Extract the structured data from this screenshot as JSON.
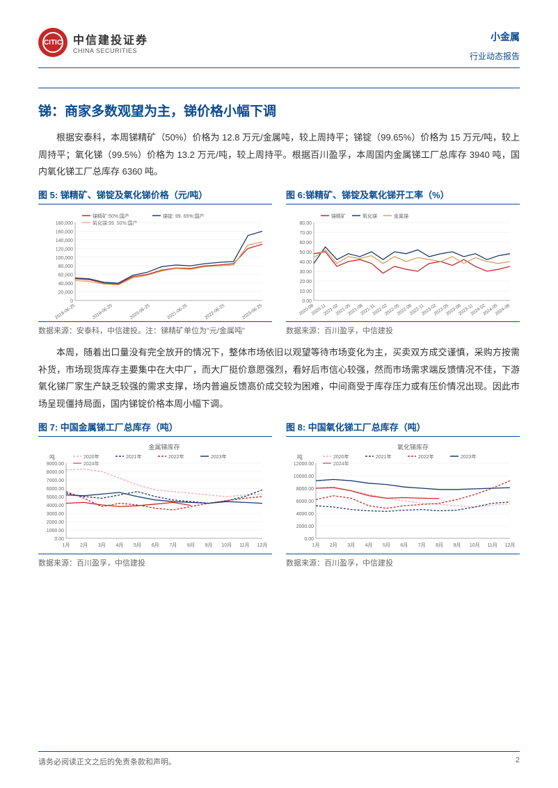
{
  "header": {
    "logo_inner": "CITIC",
    "logo_cn": "中信建投证券",
    "logo_en": "CHINA SECURITIES",
    "category": "小金属",
    "report_type": "行业动态报告"
  },
  "title": "锑：商家多数观望为主，锑价格小幅下调",
  "para1": "根据安泰科，本周锑精矿（50%）价格为 12.8 万元/金属吨，较上周持平；锑锭（99.65%）价格为 15 万元/吨，较上周持平；氧化锑（99.5%）价格为 13.2 万元/吨，较上周持平。根据百川盈孚，本周国内金属锑工厂总库存 3940 吨，国内氧化锑工厂总库存 6360 吨。",
  "para2": "本周，随着出口量没有完全放开的情况下，整体市场依旧以观望等待市场变化为主，买卖双方成交谨慎，采购方按需补货，市场现货库存主要集中在大中厂，而大厂挺价意愿强烈，看好后市信心较强，然而市场需求端反馈情况不佳，下游氧化锑厂家生产缺乏较强的需求支撑，场内普遍反馈高价成交较为困难，中间商受于库存压力或有压价情况出现。因此市场呈现僵持局面，国内锑锭价格本周小幅下调。",
  "chart5": {
    "title": "图 5: 锑精矿、锑锭及氧化锑价格（元/吨）",
    "source": "数据来源：安泰科，中信建投。注：锑精矿单位为\"元/金属吨\"",
    "type": "line",
    "series": [
      {
        "name": "锑精矿:50%:国产",
        "color": "#c62828"
      },
      {
        "name": "锑锭: 99. 65%:国产",
        "color": "#1b3a6b"
      },
      {
        "name": "氧化锑:99. 50%:国产",
        "color": "#d9a05b"
      }
    ],
    "x_labels": [
      "2018-06-25",
      "2019-06-25",
      "2020-06-25",
      "2021-06-25",
      "2022-06-25",
      "2023-06-25"
    ],
    "y_ticks": [
      0,
      20000,
      40000,
      60000,
      80000,
      100000,
      120000,
      140000,
      160000,
      180000
    ],
    "y_tick_labels": [
      "0",
      "20,000",
      "40,000",
      "60,000",
      "80,000",
      "100,000",
      "120,000",
      "140,000",
      "160,000",
      "180,000"
    ],
    "ylim": [
      0,
      180000
    ],
    "data": {
      "ore": [
        50000,
        48000,
        40000,
        38000,
        55000,
        60000,
        70000,
        75000,
        74000,
        80000,
        82000,
        85000,
        120000,
        130000
      ],
      "ingot": [
        52000,
        50000,
        42000,
        40000,
        58000,
        65000,
        78000,
        82000,
        80000,
        85000,
        88000,
        90000,
        150000,
        160000
      ],
      "oxide": [
        46000,
        44000,
        38000,
        36000,
        52000,
        58000,
        68000,
        74000,
        72000,
        78000,
        80000,
        82000,
        128000,
        135000
      ]
    }
  },
  "chart6": {
    "title": "图 6:锑精矿、锑锭及氧化锑开工率（%）",
    "source": "数据来源：百川盈孚，中信建投",
    "type": "line",
    "series": [
      {
        "name": "锑精矿",
        "color": "#c62828"
      },
      {
        "name": "氧化锑",
        "color": "#1b3a6b"
      },
      {
        "name": "金属锑",
        "color": "#d9a05b"
      }
    ],
    "x_labels": [
      "2020-08",
      "2020-11",
      "2021-02",
      "2021-05",
      "2021-08",
      "2021-11",
      "2022-02",
      "2022-05",
      "2022-08",
      "2022-11",
      "2023-02",
      "2023-05",
      "2023-08",
      "2023-11",
      "2024-02",
      "2024-05",
      "2024-08"
    ],
    "y_ticks": [
      0,
      10,
      20,
      30,
      40,
      50,
      60,
      70,
      80
    ],
    "ylim": [
      0,
      80
    ],
    "data": {
      "ore": [
        48,
        50,
        35,
        40,
        42,
        38,
        28,
        35,
        32,
        30,
        38,
        40,
        36,
        42,
        35,
        30,
        32,
        35
      ],
      "oxide": [
        38,
        55,
        42,
        48,
        45,
        50,
        42,
        50,
        48,
        52,
        45,
        48,
        50,
        45,
        48,
        42,
        46,
        48
      ],
      "metal": [
        44,
        52,
        38,
        45,
        43,
        46,
        38,
        45,
        40,
        44,
        42,
        40,
        45,
        38,
        44,
        40,
        38,
        40
      ]
    }
  },
  "chart7": {
    "title": "图 7: 中国金属锑工厂总库存（吨）",
    "subtitle": "金属锑库存",
    "source": "数据来源：百川盈孚，中信建投",
    "type": "line",
    "y_axis_label": "吨",
    "series": [
      {
        "name": "2020年",
        "color": "#f4a6b0",
        "dash": true
      },
      {
        "name": "2021年",
        "color": "#1b3a6b",
        "dash": true
      },
      {
        "name": "2022年",
        "color": "#c62828",
        "dash": true
      },
      {
        "name": "2023年",
        "color": "#1b3a6b",
        "dash": false
      },
      {
        "name": "2024年",
        "color": "#c62828",
        "dash": false
      }
    ],
    "x_labels": [
      "1月",
      "2月",
      "3月",
      "4月",
      "5月",
      "6月",
      "7月",
      "8月",
      "9月",
      "10月",
      "11月",
      "12月"
    ],
    "y_ticks": [
      0,
      1000,
      2000,
      3000,
      4000,
      5000,
      6000,
      7000,
      8000,
      9000
    ],
    "ylim": [
      0,
      9000
    ],
    "data": {
      "2020": [
        8200,
        8300,
        8000,
        7200,
        6400,
        5800,
        5600,
        5400,
        5200,
        5000,
        5200,
        5300
      ],
      "2021": [
        5400,
        5000,
        4800,
        5200,
        5600,
        5000,
        4600,
        4400,
        4200,
        4500,
        5000,
        5800
      ],
      "2022": [
        5600,
        4800,
        3800,
        4200,
        4000,
        3600,
        3400,
        3800,
        4200,
        4500,
        4800,
        5000
      ],
      "2023": [
        5200,
        5100,
        5300,
        5500,
        5000,
        4600,
        4400,
        4300,
        4200,
        4400,
        4300,
        4200
      ],
      "2024": [
        4200,
        4300,
        4000,
        3800,
        3900,
        4100,
        4300,
        3940,
        0,
        0,
        0,
        0
      ]
    }
  },
  "chart8": {
    "title": "图 8: 中国氧化锑工厂总库存（吨）",
    "subtitle": "氧化锑库存",
    "source": "数据来源：百川盈孚，中信建投",
    "type": "line",
    "y_axis_label": "吨",
    "series": [
      {
        "name": "2020年",
        "color": "#f4a6b0",
        "dash": true
      },
      {
        "name": "2021年",
        "color": "#1b3a6b",
        "dash": true
      },
      {
        "name": "2022年",
        "color": "#c62828",
        "dash": true
      },
      {
        "name": "2023年",
        "color": "#1b3a6b",
        "dash": false
      },
      {
        "name": "2024年",
        "color": "#c62828",
        "dash": false
      }
    ],
    "x_labels": [
      "1月",
      "2月",
      "3月",
      "4月",
      "5月",
      "6月",
      "7月",
      "8月",
      "9月",
      "10月",
      "11月",
      "12月"
    ],
    "y_ticks": [
      0,
      2000,
      4000,
      6000,
      8000,
      10000,
      12000
    ],
    "ylim": [
      0,
      12000
    ],
    "data": {
      "2020": [
        8000,
        8200,
        7600,
        7000,
        6400,
        6000,
        5600,
        5400,
        5200,
        5000,
        5300,
        5500
      ],
      "2021": [
        5200,
        5000,
        4600,
        4400,
        4300,
        4500,
        4600,
        4400,
        4500,
        5000,
        5600,
        5800
      ],
      "2022": [
        6200,
        6800,
        6400,
        5200,
        4800,
        5200,
        5400,
        5600,
        6200,
        7000,
        8000,
        9200
      ],
      "2023": [
        9200,
        9400,
        9200,
        8800,
        8600,
        8200,
        8000,
        7800,
        7800,
        7900,
        8000,
        8100
      ],
      "2024": [
        8000,
        8100,
        7600,
        6800,
        6400,
        6500,
        6400,
        6360,
        0,
        0,
        0,
        0
      ]
    }
  },
  "footer": {
    "disclaimer": "请务必阅读正文之后的免责条款和声明。",
    "page_num": "2"
  }
}
